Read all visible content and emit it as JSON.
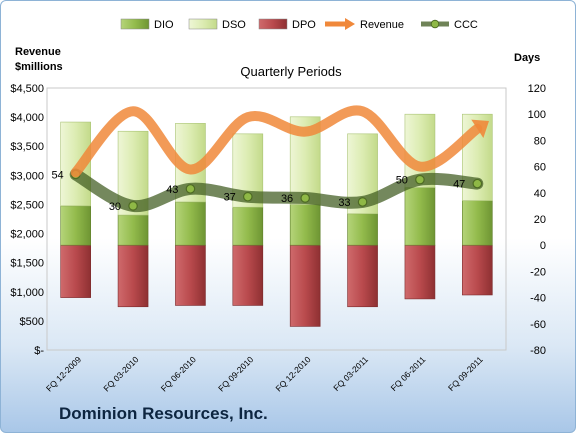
{
  "company_name": "Dominion Resources, Inc.",
  "chart_data": {
    "type": "bar",
    "title": "Quarterly Periods",
    "ylabel_left": "Revenue $millions",
    "ylabel_right": "Days",
    "categories": [
      "FQ 12-2009",
      "FQ 03-2010",
      "FQ 06-2010",
      "FQ 09-2010",
      "FQ 12-2010",
      "FQ 03-2011",
      "FQ 06-2011",
      "FQ 09-2011"
    ],
    "yleft_ticks": [
      "$-",
      "$500",
      "$1,000",
      "$1,500",
      "$2,000",
      "$2,500",
      "$3,000",
      "$3,500",
      "$4,000",
      "$4,500"
    ],
    "yleft_lim": [
      0,
      4500
    ],
    "yright_ticks": [
      "-80",
      "-60",
      "-40",
      "-20",
      "0",
      "20",
      "40",
      "60",
      "80",
      "100",
      "120"
    ],
    "yright_lim": [
      -80,
      120
    ],
    "legend_position": "top",
    "legend": [
      "DIO",
      "DSO",
      "DPO",
      "Revenue",
      "CCC"
    ],
    "series": [
      {
        "name": "DIO",
        "type": "bar",
        "axis": "right",
        "color": "#8fb846",
        "values": [
          30,
          23,
          33,
          29,
          31,
          24,
          44,
          34
        ]
      },
      {
        "name": "DSO",
        "type": "bar",
        "axis": "right",
        "color": "#d8eaae",
        "values": [
          64,
          64,
          60,
          56,
          67,
          61,
          56,
          66
        ]
      },
      {
        "name": "DPO",
        "type": "bar",
        "axis": "right",
        "color": "#b8484b",
        "values": [
          -40,
          -47,
          -46,
          -46,
          -62,
          -47,
          -41,
          -38
        ]
      },
      {
        "name": "Revenue",
        "type": "line",
        "axis": "left",
        "color": "#f0883a",
        "values": [
          3050,
          4100,
          3100,
          4000,
          3750,
          4100,
          3150,
          3800
        ]
      },
      {
        "name": "CCC",
        "type": "line",
        "axis": "right",
        "color": "#55712f",
        "values": [
          54,
          30,
          43,
          37,
          36,
          33,
          50,
          47
        ]
      }
    ],
    "data_labels": [
      "54",
      "30",
      "43",
      "37",
      "36",
      "33",
      "50",
      "47"
    ]
  }
}
